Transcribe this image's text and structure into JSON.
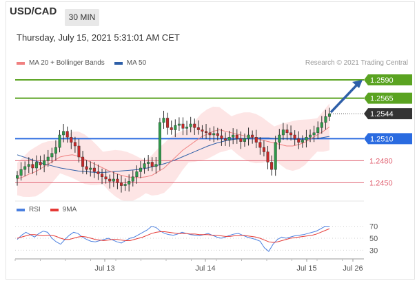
{
  "header": {
    "symbol": "USD/CAD",
    "timeframe": "30 MIN",
    "date": "Thursday, July 15, 2021 5:31:01 AM CET",
    "research": "Research © 2021 Trading Central"
  },
  "legend": {
    "ma20": "MA 20 + Bollinger Bands",
    "ma50": "MA 50",
    "ma20_color": "#f08080",
    "ma50_color": "#2e5fa8"
  },
  "rsi_legend": {
    "rsi": "RSI",
    "ma9": "9MA",
    "rsi_color": "#4a7fe0",
    "ma9_color": "#e53935"
  },
  "chart_data": [
    {
      "type": "candlestick",
      "title": "USD/CAD 30 MIN",
      "levels": [
        {
          "value": 1.259,
          "label": "1.2590",
          "color": "#5aa321",
          "style": "solid-tag"
        },
        {
          "value": 1.2565,
          "label": "1.2565",
          "color": "#5aa321",
          "style": "solid-tag"
        },
        {
          "value": 1.2544,
          "label": "1.2544",
          "color": "#333333",
          "style": "dotted-tag"
        },
        {
          "value": 1.251,
          "label": "1.2510",
          "color": "#2a6be0",
          "style": "solid-tag"
        },
        {
          "value": 1.248,
          "label": "1.2480",
          "color": "#e06070",
          "style": "text"
        },
        {
          "value": 1.245,
          "label": "1.2450",
          "color": "#e06070",
          "style": "text"
        }
      ],
      "ylim": [
        1.2425,
        1.2605
      ],
      "x_labels": [
        "Jul 13",
        "Jul 14",
        "Jul 15",
        "Jul 26"
      ],
      "close_series": [
        1.246,
        1.2468,
        1.2472,
        1.2475,
        1.247,
        1.2478,
        1.2474,
        1.248,
        1.2485,
        1.249,
        1.2498,
        1.2515,
        1.252,
        1.2512,
        1.2505,
        1.25,
        1.2485,
        1.2472,
        1.2468,
        1.247,
        1.2465,
        1.2462,
        1.2458,
        1.2455,
        1.2452,
        1.2455,
        1.245,
        1.2446,
        1.2448,
        1.2452,
        1.2458,
        1.2465,
        1.247,
        1.2476,
        1.2478,
        1.2472,
        1.2475,
        1.2532,
        1.2538,
        1.2525,
        1.2522,
        1.2528,
        1.253,
        1.2524,
        1.2526,
        1.253,
        1.2525,
        1.2522,
        1.252,
        1.2518,
        1.2515,
        1.2517,
        1.2514,
        1.251,
        1.2508,
        1.2512,
        1.2515,
        1.251,
        1.2506,
        1.251,
        1.2515,
        1.2512,
        1.2505,
        1.2498,
        1.2492,
        1.2478,
        1.2468,
        1.2505,
        1.2515,
        1.2522,
        1.2518,
        1.2515,
        1.251,
        1.2505,
        1.2508,
        1.2512,
        1.2515,
        1.2518,
        1.2525,
        1.2532,
        1.254,
        1.2544
      ],
      "ma20_series": [
        1.2455,
        1.2458,
        1.2462,
        1.2465,
        1.247,
        1.2475,
        1.248,
        1.2485,
        1.2487,
        1.2488,
        1.2486,
        1.2482,
        1.2478,
        1.2474,
        1.247,
        1.2466,
        1.2463,
        1.246,
        1.2458,
        1.2457,
        1.2457,
        1.2458,
        1.246,
        1.2465,
        1.247,
        1.2478,
        1.2486,
        1.2494,
        1.25,
        1.2506,
        1.2512,
        1.2516,
        1.252,
        1.2522,
        1.252,
        1.2518,
        1.2516,
        1.2514,
        1.2512,
        1.251,
        1.2508,
        1.2506,
        1.2504,
        1.2502,
        1.25,
        1.25,
        1.2502,
        1.2505,
        1.251,
        1.2515,
        1.252,
        1.2526
      ],
      "ma50_series": [
        1.2488,
        1.2484,
        1.248,
        1.2476,
        1.2473,
        1.247,
        1.2468,
        1.2466,
        1.2465,
        1.2464,
        1.2464,
        1.2465,
        1.2466,
        1.2467,
        1.2468,
        1.247,
        1.2473,
        1.2476,
        1.248,
        1.2485,
        1.249,
        1.2495,
        1.25,
        1.2504,
        1.2507,
        1.2509,
        1.251,
        1.2511,
        1.2511,
        1.2511,
        1.251,
        1.251,
        1.2509,
        1.2509,
        1.251,
        1.2511,
        1.2513
      ]
    },
    {
      "type": "line",
      "title": "RSI",
      "yticks": [
        70,
        50,
        30
      ],
      "ylim": [
        20,
        80
      ],
      "series": [
        {
          "name": "RSI",
          "values": [
            48,
            55,
            60,
            56,
            52,
            58,
            62,
            60,
            50,
            44,
            40,
            48,
            55,
            60,
            58,
            52,
            48,
            45,
            44,
            46,
            48,
            50,
            47,
            44,
            42,
            46,
            50,
            52,
            56,
            60,
            64,
            70,
            68,
            62,
            58,
            56,
            55,
            57,
            60,
            58,
            56,
            55,
            54,
            56,
            58,
            55,
            52,
            50,
            52,
            55,
            57,
            58,
            55,
            52,
            50,
            48,
            45,
            34,
            28,
            40,
            48,
            52,
            50,
            52,
            54,
            55,
            56,
            58,
            60,
            62,
            66,
            70,
            70
          ]
        },
        {
          "name": "9MA",
          "values": [
            50,
            52,
            54,
            56,
            56,
            55,
            54,
            55,
            55,
            53,
            50,
            48,
            48,
            50,
            52,
            53,
            52,
            50,
            48,
            47,
            46,
            47,
            48,
            48,
            47,
            46,
            46,
            48,
            50,
            52,
            55,
            58,
            60,
            61,
            61,
            60,
            59,
            58,
            58,
            58,
            57,
            57,
            56,
            56,
            56,
            55,
            55,
            54,
            53,
            53,
            54,
            54,
            55,
            54,
            53,
            52,
            50,
            47,
            44,
            43,
            44,
            46,
            48,
            50,
            51,
            52,
            53,
            54,
            55,
            57,
            60,
            63,
            66
          ]
        }
      ]
    }
  ]
}
